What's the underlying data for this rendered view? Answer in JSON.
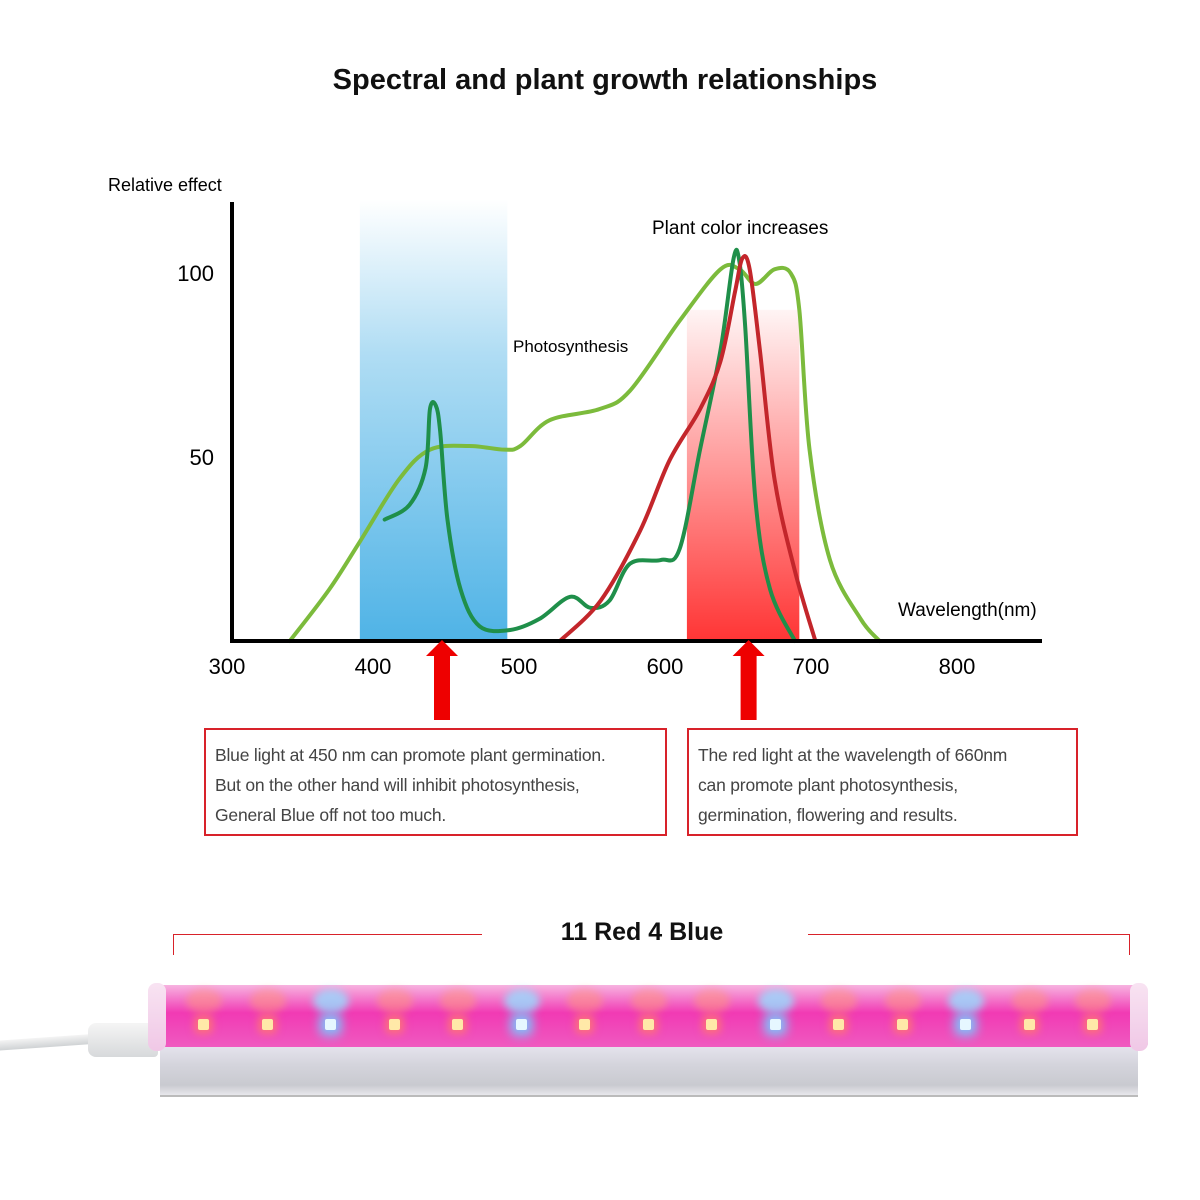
{
  "title": "Spectral and plant growth relationships",
  "chart_data": {
    "type": "line",
    "ylabel": "Relative effect",
    "xlabel": "Wavelength(nm)",
    "xlim": [
      300,
      855
    ],
    "ylim": [
      0,
      120
    ],
    "x_ticks": [
      "300",
      "400",
      "500",
      "600",
      "700",
      "800"
    ],
    "y_ticks": [
      "50",
      "100"
    ],
    "grid": false,
    "annotations": [
      {
        "text": "Plant color increases",
        "x": 646,
        "y": 112
      },
      {
        "text": "Photosynthesis",
        "x": 542,
        "y": 80
      }
    ],
    "bands": [
      {
        "name": "blue",
        "x": [
          391,
          492
        ],
        "top": 120,
        "color": "#4fb3e6"
      },
      {
        "name": "red",
        "x": [
          615,
          692
        ],
        "top": 90,
        "color": "#ff2a2a"
      }
    ],
    "arrows": [
      450,
      660
    ],
    "series": [
      {
        "color": "#7cbb3c",
        "points": [
          [
            343,
            0
          ],
          [
            370,
            14
          ],
          [
            391,
            27
          ],
          [
            418,
            44
          ],
          [
            439,
            52
          ],
          [
            466,
            53
          ],
          [
            490,
            52
          ],
          [
            501,
            53
          ],
          [
            521,
            60
          ],
          [
            555,
            63
          ],
          [
            576,
            68
          ],
          [
            610,
            87
          ],
          [
            638,
            101
          ],
          [
            651,
            101
          ],
          [
            662,
            97
          ],
          [
            675,
            101
          ],
          [
            686,
            100
          ],
          [
            692,
            90
          ],
          [
            699,
            52
          ],
          [
            713,
            22
          ],
          [
            734,
            6
          ],
          [
            747,
            0
          ]
        ]
      },
      {
        "color": "#1f8f4a",
        "points": [
          [
            408,
            33
          ],
          [
            425,
            37
          ],
          [
            436,
            47
          ],
          [
            439,
            63
          ],
          [
            443,
            64
          ],
          [
            446,
            57
          ],
          [
            451,
            33
          ],
          [
            460,
            14
          ],
          [
            473,
            4
          ],
          [
            494,
            3
          ],
          [
            514,
            6
          ],
          [
            535,
            12
          ],
          [
            549,
            9
          ],
          [
            562,
            11
          ],
          [
            576,
            21
          ],
          [
            597,
            22
          ],
          [
            610,
            25
          ],
          [
            624,
            52
          ],
          [
            638,
            79
          ],
          [
            647,
            104
          ],
          [
            651,
            103
          ],
          [
            655,
            85
          ],
          [
            662,
            38
          ],
          [
            672,
            14
          ],
          [
            689,
            0
          ]
        ]
      },
      {
        "color": "#c3262b",
        "points": [
          [
            528,
            0
          ],
          [
            556,
            11
          ],
          [
            583,
            30
          ],
          [
            603,
            49
          ],
          [
            624,
            63
          ],
          [
            638,
            76
          ],
          [
            648,
            95
          ],
          [
            653,
            104
          ],
          [
            658,
            101
          ],
          [
            665,
            79
          ],
          [
            675,
            44
          ],
          [
            689,
            19
          ],
          [
            703,
            0
          ]
        ]
      }
    ]
  },
  "callouts": {
    "blue": [
      "Blue light at 450 nm can promote plant germination.",
      "But on the other hand will inhibit photosynthesis,",
      "General Blue off not too much."
    ],
    "red": [
      "The red light at the wavelength of 660nm",
      "can promote plant photosynthesis,",
      "germination, flowering and results."
    ]
  },
  "product": {
    "spec_label": "11 Red 4 Blue",
    "led_sequence": [
      "R",
      "R",
      "B",
      "R",
      "R",
      "B",
      "R",
      "R",
      "R",
      "B",
      "R",
      "R",
      "B",
      "R",
      "R"
    ]
  }
}
